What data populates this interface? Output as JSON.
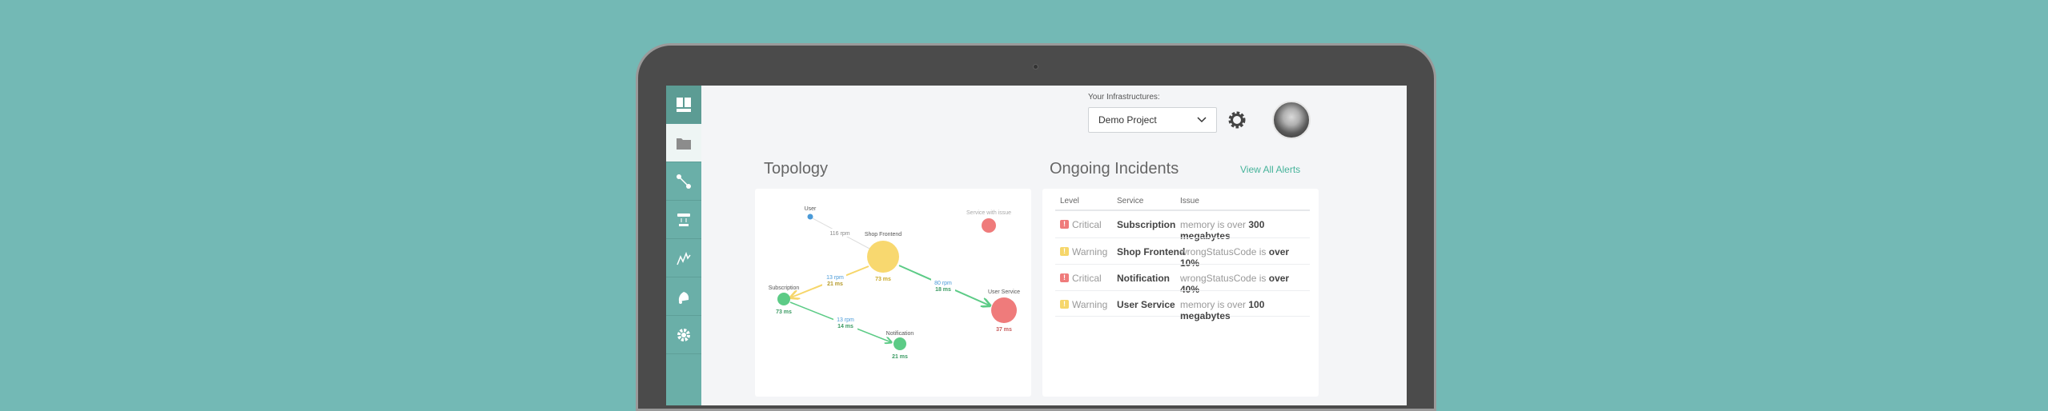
{
  "header": {
    "infra_label": "Your Infrastructures:",
    "project": "Demo Project"
  },
  "sidebar": {
    "items": [
      "logo",
      "projects",
      "topology",
      "servers",
      "metrics",
      "alerts",
      "settings"
    ]
  },
  "topology": {
    "title": "Topology",
    "legend": "Service with issue",
    "nodes": {
      "user": "User",
      "shop": "Shop Frontend",
      "shop_ms": "73 ms",
      "sub": "Subscription",
      "sub_ms": "73 ms",
      "usvc": "User Service",
      "usvc_ms": "37 ms",
      "notif": "Notification",
      "notif_ms": "21 ms"
    },
    "edges": {
      "user_shop": "116 rpm",
      "shop_sub_rpm": "13 rpm",
      "shop_sub_ms": "21 ms",
      "shop_usvc_rpm": "80 rpm",
      "shop_usvc_ms": "18 ms",
      "sub_notif_rpm": "13 rpm",
      "sub_notif_ms": "14 ms"
    }
  },
  "incidents": {
    "title": "Ongoing Incidents",
    "view_all": "View All Alerts",
    "columns": [
      "Level",
      "Service",
      "Issue"
    ],
    "rows": [
      {
        "level": "Critical",
        "service": "Subscription",
        "metric": "memory is over",
        "value": "300 megabytes"
      },
      {
        "level": "Warning",
        "service": "Shop Frontend",
        "metric": "wrongStatusCode is",
        "value": "over 10%"
      },
      {
        "level": "Critical",
        "service": "Notification",
        "metric": "wrongStatusCode is",
        "value": "over 40%"
      },
      {
        "level": "Warning",
        "service": "User Service",
        "metric": "memory is over",
        "value": "100 megabytes"
      }
    ]
  },
  "colors": {
    "critical": "#ef7b7b",
    "warning": "#f6d66a",
    "ok": "#5ccb86",
    "accent": "#46b39a"
  }
}
